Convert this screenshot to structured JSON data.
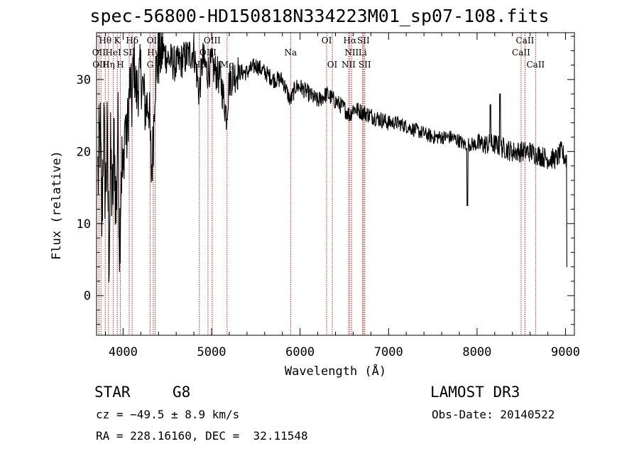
{
  "chart_data": {
    "type": "line",
    "title": "spec-56800-HD150818N334223M01_sp07-108.fits",
    "xlabel": "Wavelength (Å)",
    "ylabel": "Flux (relative)",
    "xlim": [
      3700,
      9100
    ],
    "ylim": [
      -5.5,
      36.5
    ],
    "xticks": [
      4000,
      5000,
      6000,
      7000,
      8000,
      9000
    ],
    "yticks": [
      0,
      10,
      20,
      30
    ],
    "xtick_labels": [
      "4000",
      "5000",
      "6000",
      "7000",
      "8000",
      "9000"
    ],
    "ytick_labels": [
      "0",
      "10",
      "20",
      "30"
    ],
    "series": [
      {
        "name": "spectrum",
        "anchors": [
          [
            3720,
            17
          ],
          [
            3740,
            23
          ],
          [
            3760,
            10
          ],
          [
            3780,
            24
          ],
          [
            3800,
            14
          ],
          [
            3820,
            21
          ],
          [
            3840,
            6
          ],
          [
            3860,
            19
          ],
          [
            3880,
            12
          ],
          [
            3900,
            22
          ],
          [
            3920,
            11
          ],
          [
            3940,
            24
          ],
          [
            3960,
            8
          ],
          [
            3980,
            19
          ],
          [
            4000,
            15
          ],
          [
            4020,
            25
          ],
          [
            4040,
            21
          ],
          [
            4060,
            26
          ],
          [
            4080,
            30
          ],
          [
            4100,
            26
          ],
          [
            4120,
            33
          ],
          [
            4150,
            28
          ],
          [
            4200,
            31
          ],
          [
            4250,
            26
          ],
          [
            4290,
            27
          ],
          [
            4320,
            17
          ],
          [
            4340,
            21
          ],
          [
            4360,
            30
          ],
          [
            4400,
            33
          ],
          [
            4450,
            34
          ],
          [
            4500,
            33
          ],
          [
            4600,
            32
          ],
          [
            4700,
            33
          ],
          [
            4800,
            34
          ],
          [
            4860,
            28
          ],
          [
            4900,
            33
          ],
          [
            4950,
            31
          ],
          [
            5000,
            32
          ],
          [
            5100,
            30
          ],
          [
            5170,
            25
          ],
          [
            5200,
            30
          ],
          [
            5300,
            31
          ],
          [
            5400,
            31
          ],
          [
            5500,
            32
          ],
          [
            5600,
            31
          ],
          [
            5700,
            30
          ],
          [
            5800,
            30
          ],
          [
            5890,
            27
          ],
          [
            5950,
            29
          ],
          [
            6000,
            29
          ],
          [
            6100,
            28
          ],
          [
            6200,
            27
          ],
          [
            6300,
            28
          ],
          [
            6400,
            27
          ],
          [
            6500,
            26
          ],
          [
            6563,
            25
          ],
          [
            6600,
            26
          ],
          [
            6700,
            25.5
          ],
          [
            6800,
            25
          ],
          [
            6900,
            24.5
          ],
          [
            7000,
            24
          ],
          [
            7100,
            24
          ],
          [
            7200,
            23.5
          ],
          [
            7300,
            23
          ],
          [
            7400,
            22.5
          ],
          [
            7500,
            22
          ],
          [
            7600,
            22
          ],
          [
            7700,
            22
          ],
          [
            7800,
            21.5
          ],
          [
            7850,
            21
          ],
          [
            7900,
            21
          ],
          [
            8000,
            21
          ],
          [
            8100,
            21
          ],
          [
            8200,
            21
          ],
          [
            8300,
            20.5
          ],
          [
            8400,
            20
          ],
          [
            8500,
            20
          ],
          [
            8600,
            20
          ],
          [
            8700,
            19.5
          ],
          [
            8800,
            19
          ],
          [
            8900,
            19
          ],
          [
            8950,
            20
          ],
          [
            9000,
            19
          ]
        ],
        "features": [
          [
            7890,
            12.5
          ],
          [
            8150,
            26.5
          ],
          [
            8260,
            28
          ],
          [
            9020,
            4
          ]
        ]
      }
    ],
    "lines": [
      {
        "label": "Hθ",
        "wave": 3798,
        "row": 1
      },
      {
        "label": "OII",
        "wave": 3727,
        "row": 2
      },
      {
        "label": "OIII",
        "wave": 3750,
        "row": 3
      },
      {
        "label": "Hη",
        "wave": 3835,
        "row": 3
      },
      {
        "label": "HeI",
        "wave": 3889,
        "row": 2
      },
      {
        "label": "K",
        "wave": 3934,
        "row": 1
      },
      {
        "label": "SII",
        "wave": 4069,
        "row": 2
      },
      {
        "label": "H",
        "wave": 3969,
        "row": 3
      },
      {
        "label": "Hδ",
        "wave": 4102,
        "row": 1
      },
      {
        "label": "OIII",
        "wave": 4363,
        "row": 1
      },
      {
        "label": "Hγ",
        "wave": 4341,
        "row": 2
      },
      {
        "label": "G",
        "wave": 4305,
        "row": 3
      },
      {
        "label": "OIII",
        "wave": 5007,
        "row": 1
      },
      {
        "label": "OIII",
        "wave": 4959,
        "row": 2
      },
      {
        "label": "Hβ",
        "wave": 4861,
        "row": 3
      },
      {
        "label": "Mg",
        "wave": 5175,
        "row": 3
      },
      {
        "label": "Na",
        "wave": 5893,
        "row": 2
      },
      {
        "label": "OI",
        "wave": 6300,
        "row": 1
      },
      {
        "label": "OI",
        "wave": 6364,
        "row": 3
      },
      {
        "label": "Hα",
        "wave": 6563,
        "row": 1
      },
      {
        "label": "NII",
        "wave": 6583,
        "row": 2
      },
      {
        "label": "NII",
        "wave": 6548,
        "row": 3
      },
      {
        "label": "SII",
        "wave": 6716,
        "row": 1
      },
      {
        "label": "SII",
        "wave": 6731,
        "row": 3
      },
      {
        "label": "Li",
        "wave": 6707,
        "row": 2
      },
      {
        "label": "CaII",
        "wave": 8542,
        "row": 1
      },
      {
        "label": "CaII",
        "wave": 8498,
        "row": 2
      },
      {
        "label": "CaII",
        "wave": 8662,
        "row": 3
      }
    ],
    "line_color": "#b22222",
    "spectrum_color": "#000000"
  },
  "info": {
    "object_class": "STAR",
    "subclass": "G8",
    "survey": "LAMOST DR3",
    "cz": "cz = −49.5 ± 8.9 km/s",
    "obs_date": "Obs-Date: 20140522",
    "coords": "RA = 228.16160, DEC =  32.11548"
  }
}
